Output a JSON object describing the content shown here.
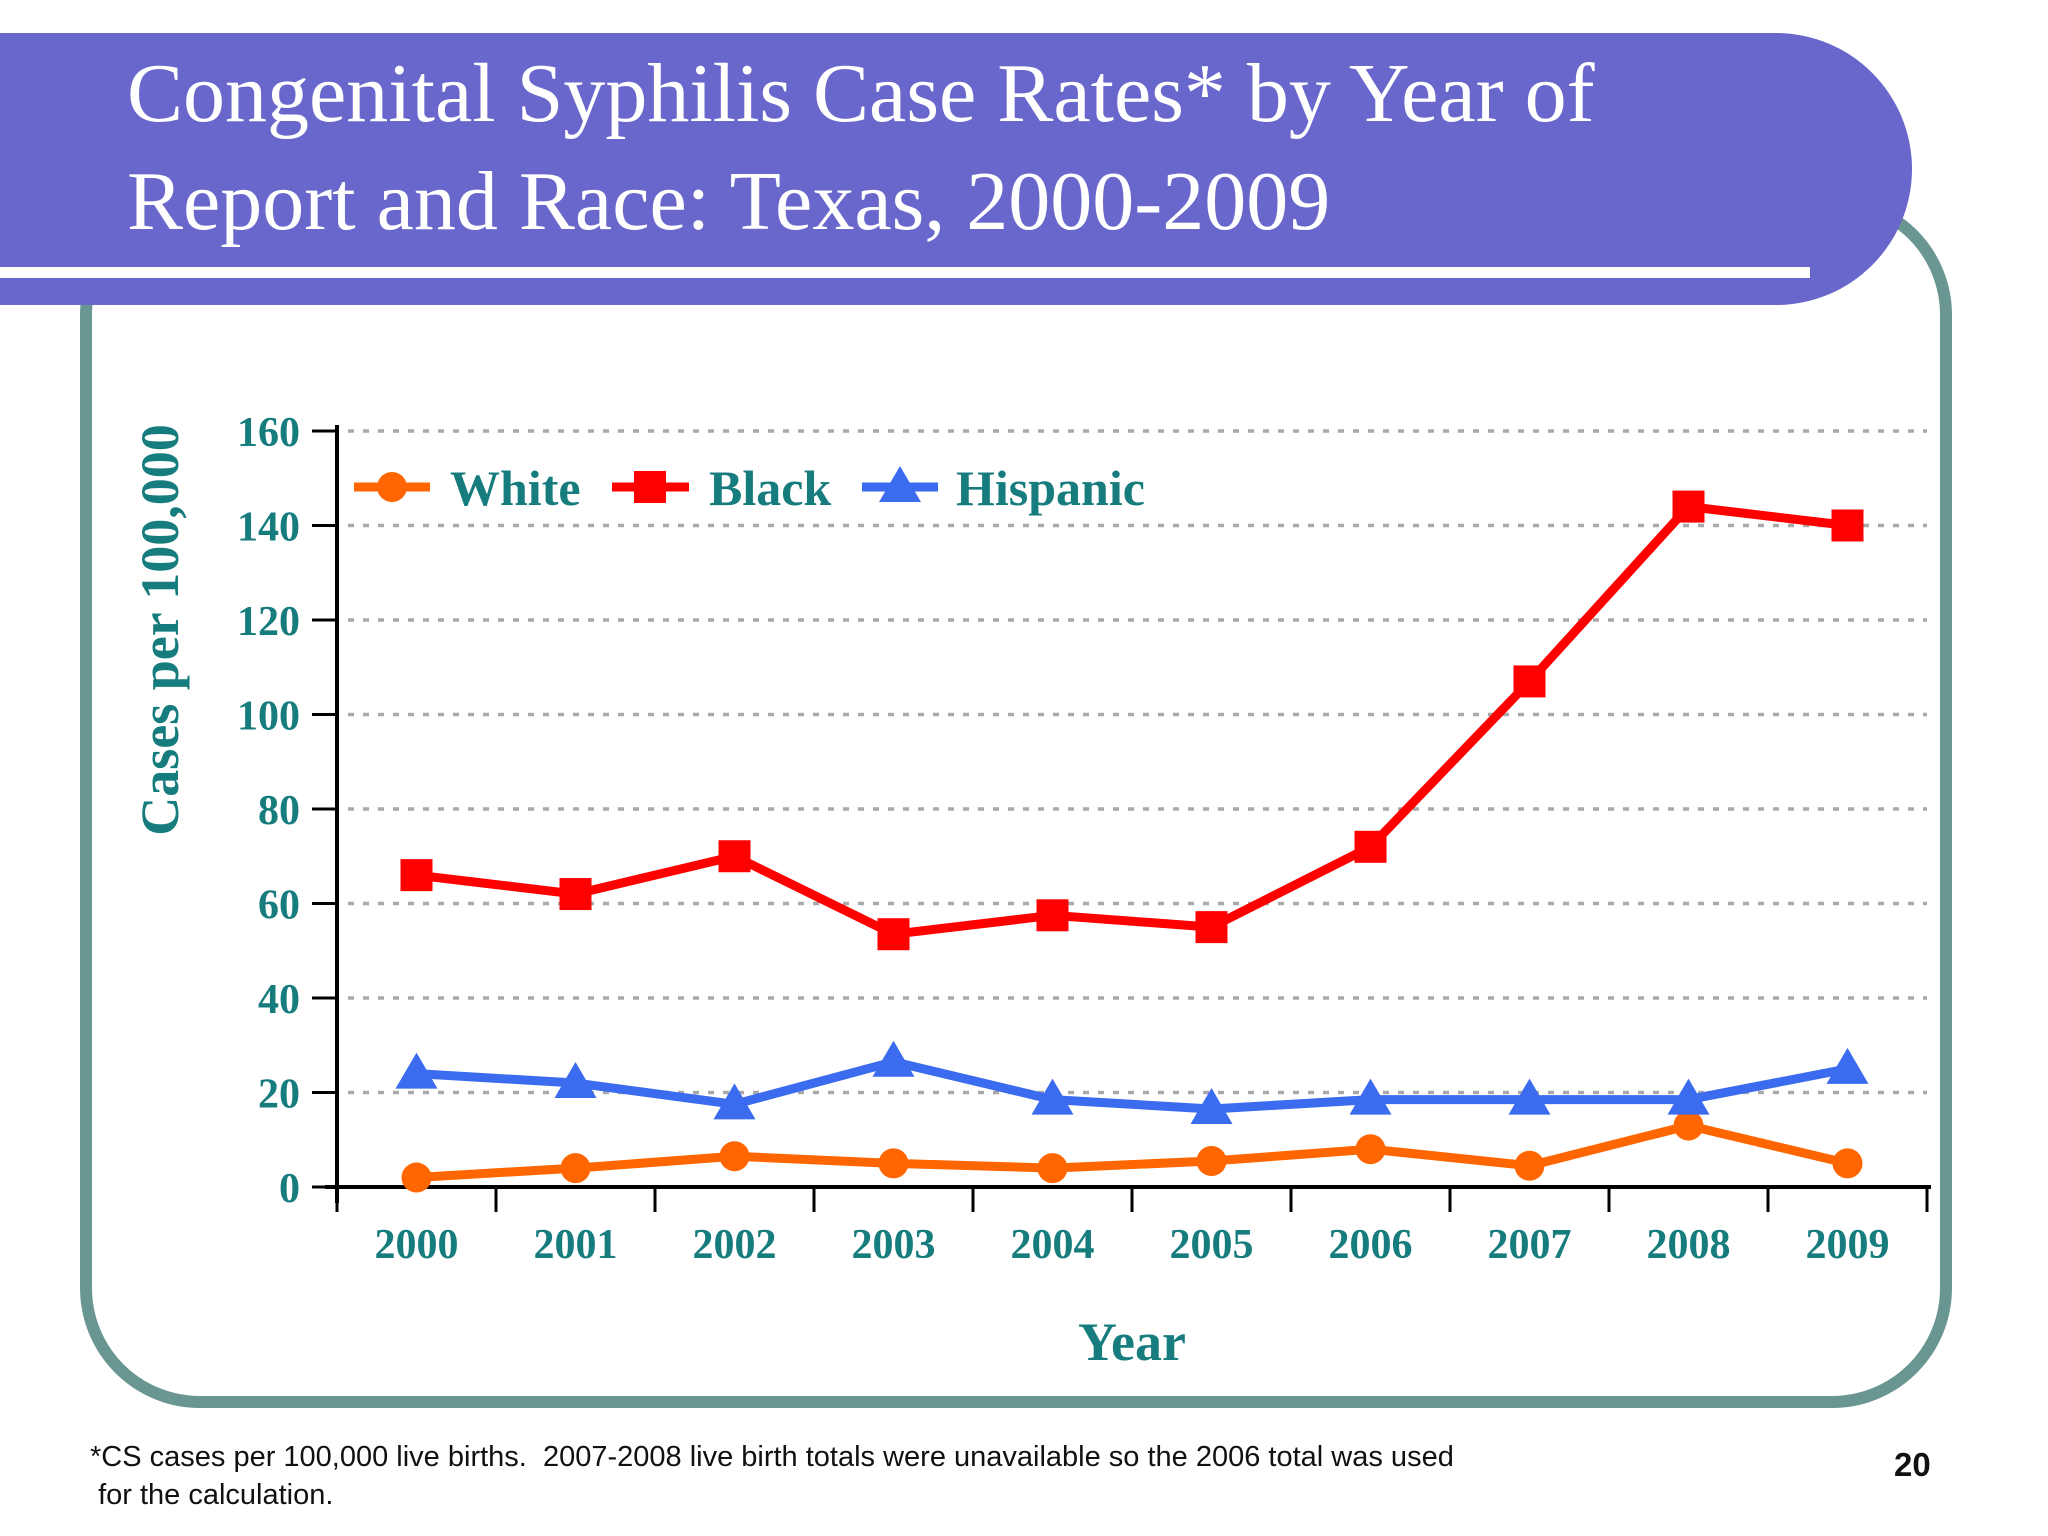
{
  "slide": {
    "title_lines": [
      "Congenital Syphilis Case Rates* by Year of",
      "Report and Race: Texas, 2000-2009"
    ],
    "footnote_line1": "*CS cases per 100,000 live births.  2007-2008 live birth totals were unavailable so the 2006 total was used",
    "footnote_line2": " for the calculation.",
    "page_number": "20"
  },
  "colors": {
    "banner_purple": "#6967cb",
    "frame_teal": "#699691",
    "chart_text_teal": "#177c7d",
    "axis_black": "#000000",
    "gridline_gray": "#a9a9a9",
    "white_series": "#ff6600",
    "black_series": "#ff0000",
    "hispanic_series": "#3b6bee"
  },
  "chart_data": {
    "type": "line",
    "title": "",
    "xlabel": "Year",
    "ylabel": "Cases per 100,000",
    "categories": [
      "2000",
      "2001",
      "2002",
      "2003",
      "2004",
      "2005",
      "2006",
      "2007",
      "2008",
      "2009"
    ],
    "series": [
      {
        "name": "White",
        "marker": "circle",
        "color": "#ff6600",
        "values": [
          2,
          4,
          6.5,
          5,
          4,
          5.5,
          8,
          4.5,
          13,
          5
        ]
      },
      {
        "name": "Black",
        "marker": "square",
        "color": "#ff0000",
        "values": [
          66,
          62,
          70,
          53.5,
          57.5,
          55,
          72,
          107,
          144,
          140
        ]
      },
      {
        "name": "Hispanic",
        "marker": "triangle",
        "color": "#3b6bee",
        "values": [
          24,
          22,
          17.5,
          26.5,
          18.5,
          16.5,
          18.5,
          18.5,
          18.5,
          25
        ]
      }
    ],
    "ylim": [
      0,
      160
    ],
    "ytick_step": 20,
    "yticks": [
      "0",
      "20",
      "40",
      "60",
      "80",
      "100",
      "120",
      "140",
      "160"
    ],
    "grid": "horizontal-dotted",
    "legend_position": "top-left-inside"
  }
}
